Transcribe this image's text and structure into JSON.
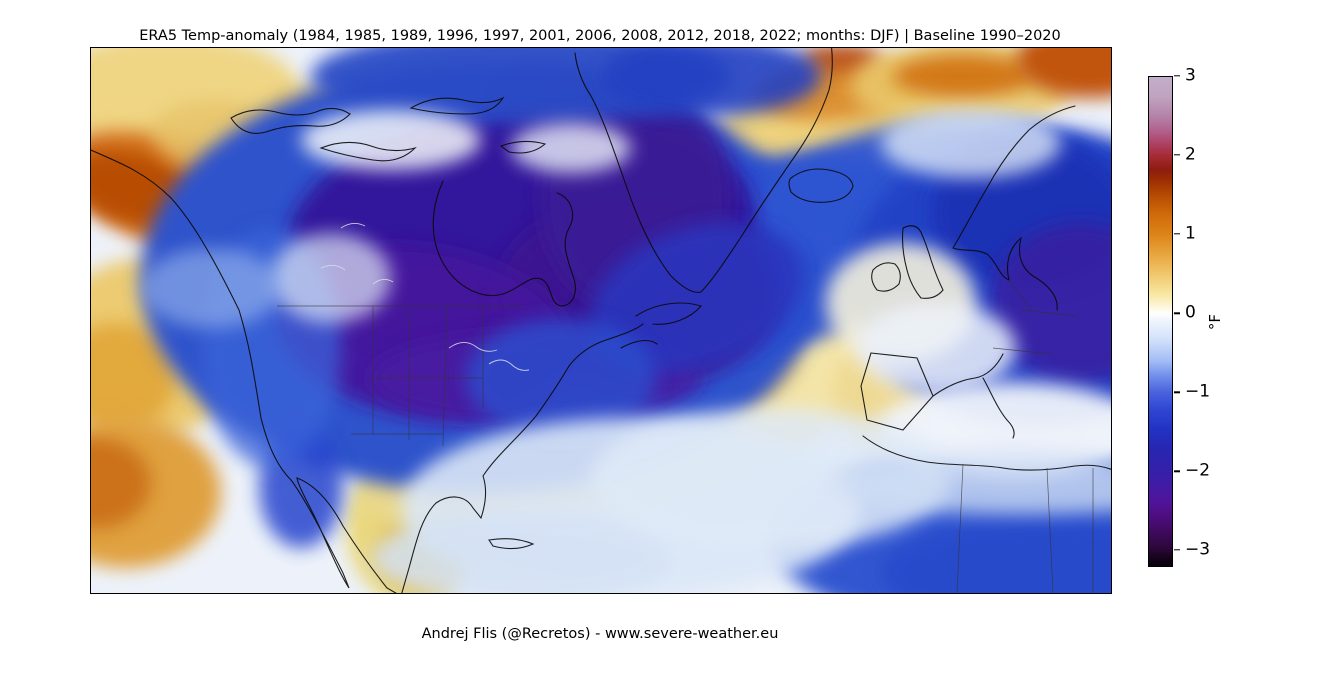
{
  "figure": {
    "title": "ERA5 Temp-anomaly (1984, 1985, 1989, 1996, 1997, 2001, 2006, 2008, 2012, 2018, 2022; months: DJF) | Baseline 1990–2020",
    "caption": "Andrej Flis (@Recretos) - www.severe-weather.eu",
    "background_color": "#ffffff"
  },
  "colorbar": {
    "unit": "°F",
    "orientation": "vertical",
    "value_max": 3,
    "value_min": -3.2,
    "ticks": [
      {
        "label": "3",
        "pos": 0.0
      },
      {
        "label": "2",
        "pos": 0.161
      },
      {
        "label": "1",
        "pos": 0.322
      },
      {
        "label": "0",
        "pos": 0.483
      },
      {
        "label": "−1",
        "pos": 0.644
      },
      {
        "label": "−2",
        "pos": 0.805
      },
      {
        "label": "−3",
        "pos": 0.965
      }
    ],
    "gradient_stops": [
      [
        0.0,
        "#c2afc9"
      ],
      [
        0.04,
        "#c0a3bf"
      ],
      [
        0.08,
        "#b583a8"
      ],
      [
        0.11,
        "#b0618c"
      ],
      [
        0.135,
        "#ae4266"
      ],
      [
        0.161,
        "#a62b36"
      ],
      [
        0.19,
        "#8e1d0e"
      ],
      [
        0.21,
        "#9c2c03"
      ],
      [
        0.24,
        "#b44a02"
      ],
      [
        0.28,
        "#cf6a0a"
      ],
      [
        0.322,
        "#dc8418"
      ],
      [
        0.36,
        "#e7a33c"
      ],
      [
        0.4,
        "#f0c469"
      ],
      [
        0.44,
        "#f7e49c"
      ],
      [
        0.47,
        "#fdf6d9"
      ],
      [
        0.483,
        "#ffffff"
      ],
      [
        0.5,
        "#eef4fc"
      ],
      [
        0.54,
        "#cfdffa"
      ],
      [
        0.58,
        "#a3bdf5"
      ],
      [
        0.61,
        "#7291ea"
      ],
      [
        0.644,
        "#4a63dd"
      ],
      [
        0.68,
        "#2f46d2"
      ],
      [
        0.72,
        "#2233c4"
      ],
      [
        0.76,
        "#2726b2"
      ],
      [
        0.805,
        "#3320aa"
      ],
      [
        0.84,
        "#441aa4"
      ],
      [
        0.87,
        "#511399"
      ],
      [
        0.9,
        "#4d0d7e"
      ],
      [
        0.935,
        "#3c0a58"
      ],
      [
        0.965,
        "#2a0738"
      ],
      [
        0.985,
        "#140318"
      ],
      [
        1.0,
        "#06010a"
      ]
    ]
  },
  "map": {
    "kind": "filled-contour temperature-anomaly map",
    "coverage": "North America, Greenland, North Atlantic, Europe, North Africa",
    "base_color": "#edf2fa",
    "anomaly_regions": [
      {
        "region": "Alaska / Gulf of Alaska",
        "anomaly_f": "+1 to +2"
      },
      {
        "region": "Western & Central Canada",
        "anomaly_f": "-2 to -3"
      },
      {
        "region": "Hudson Bay & Quebec",
        "anomaly_f": "-2.5 to -3"
      },
      {
        "region": "Northern US Rockies & Plains",
        "anomaly_f": "-2 to -3"
      },
      {
        "region": "Southwestern US & Mexico interior",
        "anomaly_f": "0 to +1"
      },
      {
        "region": "Greenland interior",
        "anomaly_f": "-2 to -3"
      },
      {
        "region": "Greenland Sea (east of Greenland)",
        "anomaly_f": "+0.5 to +1.5"
      },
      {
        "region": "Svalbard / Barents sector",
        "anomaly_f": "+1 to +2"
      },
      {
        "region": "Western Atlantic off US coast",
        "anomaly_f": "+0.5 to +1"
      },
      {
        "region": "UK, Ireland & Iberia",
        "anomaly_f": "0 to +0.5"
      },
      {
        "region": "Scandinavia & Eastern Europe",
        "anomaly_f": "-1.5 to -2.5"
      },
      {
        "region": "North Africa",
        "anomaly_f": "-1 to -2"
      },
      {
        "region": "Subtropical eastern Pacific",
        "anomaly_f": "+0.5 to +1.5"
      }
    ],
    "blobs": [
      [
        80,
        45,
        130,
        60,
        "#efd685",
        1,
        0
      ],
      [
        520,
        340,
        260,
        120,
        "#f0dc9a",
        1,
        -8
      ],
      [
        690,
        300,
        200,
        80,
        "#f3e4a8",
        1,
        0
      ],
      [
        600,
        330,
        110,
        50,
        "#e9c467",
        0.9,
        -15
      ],
      [
        560,
        300,
        70,
        35,
        "#e2ad43",
        0.65,
        -20
      ],
      [
        55,
        300,
        100,
        90,
        "#eccb72",
        1,
        0
      ],
      [
        25,
        330,
        60,
        55,
        "#e1a639",
        0.9,
        0
      ],
      [
        35,
        445,
        95,
        75,
        "#e0a140",
        1,
        0
      ],
      [
        5,
        435,
        55,
        45,
        "#c96d14",
        0.9,
        0
      ],
      [
        95,
        150,
        135,
        55,
        "#d4731c",
        1,
        18
      ],
      [
        40,
        140,
        65,
        35,
        "#b54a06",
        0.9,
        15
      ],
      [
        150,
        95,
        90,
        40,
        "#e7c369",
        0.8,
        10
      ],
      [
        730,
        95,
        115,
        70,
        "#eed27e",
        1,
        -10
      ],
      [
        745,
        42,
        80,
        30,
        "#d9882a",
        0.9,
        -5
      ],
      [
        750,
        10,
        40,
        14,
        "#b23c05",
        0.85,
        0
      ],
      [
        870,
        38,
        110,
        45,
        "#e9c76a",
        0.9,
        0
      ],
      [
        872,
        28,
        70,
        22,
        "#d0700e",
        0.9,
        0
      ],
      [
        1000,
        12,
        75,
        38,
        "#c1540a",
        1,
        0
      ],
      [
        235,
        62,
        62,
        24,
        "#e8c46a",
        0.9,
        0
      ],
      [
        350,
        42,
        45,
        18,
        "#e8c46a",
        0.8,
        0
      ],
      [
        275,
        348,
        70,
        42,
        "#e9cd77",
        1,
        0
      ],
      [
        320,
        480,
        65,
        75,
        "#ead87e",
        1,
        0
      ],
      [
        330,
        505,
        45,
        45,
        "#dfb94f",
        0.8,
        0
      ],
      [
        330,
        448,
        60,
        30,
        "#ead88f",
        0.9,
        0
      ],
      [
        385,
        448,
        38,
        26,
        "#ecd483",
        0.9,
        0
      ],
      [
        560,
        412,
        85,
        45,
        "#f0e0a0",
        0.9,
        -10
      ],
      [
        790,
        348,
        48,
        55,
        "#eed992",
        0.95,
        0
      ],
      [
        168,
        330,
        30,
        45,
        "#ecd07d",
        0.8,
        0
      ],
      [
        390,
        230,
        340,
        215,
        "#2f52cb",
        1,
        0
      ],
      [
        680,
        205,
        170,
        95,
        "#2b50cf",
        0.95,
        -12
      ],
      [
        830,
        140,
        170,
        65,
        "#2e55d2",
        0.95,
        -8
      ],
      [
        950,
        230,
        190,
        150,
        "#2443c6",
        1,
        0
      ],
      [
        940,
        165,
        100,
        75,
        "#1b32b5",
        0.95,
        0
      ],
      [
        990,
        255,
        90,
        80,
        "#3a1d9e",
        0.8,
        0
      ],
      [
        920,
        490,
        240,
        95,
        "#3056d0",
        1,
        0
      ],
      [
        960,
        525,
        170,
        55,
        "#2748cb",
        0.9,
        0
      ],
      [
        430,
        185,
        235,
        125,
        "#32169b",
        1,
        -5
      ],
      [
        545,
        245,
        140,
        95,
        "#3d1691",
        0.95,
        0
      ],
      [
        335,
        285,
        150,
        85,
        "#44189d",
        0.95,
        10
      ],
      [
        445,
        330,
        165,
        45,
        "#4a1da2",
        0.85,
        0
      ],
      [
        545,
        150,
        95,
        115,
        "#3b1b96",
        0.95,
        0
      ],
      [
        460,
        45,
        60,
        30,
        "#3f1b9a",
        0.8,
        0
      ],
      [
        605,
        250,
        110,
        70,
        "#2b36bd",
        0.9,
        -20
      ],
      [
        430,
        28,
        210,
        48,
        "#2c4cc6",
        0.95,
        0
      ],
      [
        620,
        28,
        110,
        40,
        "#2340c2",
        0.9,
        0
      ],
      [
        210,
        440,
        42,
        60,
        "#2645cd",
        0.85,
        0
      ],
      [
        180,
        300,
        70,
        120,
        "#3b63d9",
        0.75,
        0
      ],
      [
        470,
        330,
        95,
        60,
        "#2c50cf",
        0.8,
        0
      ],
      [
        300,
        92,
        90,
        30,
        "#f4f7fb",
        0.85,
        0
      ],
      [
        480,
        100,
        60,
        25,
        "#eaf0fa",
        0.8,
        0
      ],
      [
        810,
        255,
        75,
        60,
        "#f4f1dd",
        0.9,
        0
      ],
      [
        845,
        300,
        80,
        45,
        "#eef3fa",
        0.85,
        0
      ],
      [
        920,
        382,
        135,
        48,
        "#f0f4fb",
        0.95,
        0
      ],
      [
        540,
        460,
        230,
        90,
        "#dbe7f7",
        0.9,
        0
      ],
      [
        430,
        510,
        150,
        45,
        "#d4e2f5",
        0.85,
        0
      ],
      [
        680,
        430,
        180,
        70,
        "#dfeaf8",
        0.85,
        0
      ],
      [
        240,
        230,
        60,
        45,
        "#dfe9f6",
        0.7,
        0
      ],
      [
        120,
        240,
        70,
        40,
        "#9db9ee",
        0.6,
        0
      ],
      [
        880,
        95,
        90,
        35,
        "#dde8f8",
        0.8,
        0
      ],
      [
        930,
        438,
        190,
        28,
        "#cfdef4",
        0.8,
        0
      ]
    ]
  }
}
